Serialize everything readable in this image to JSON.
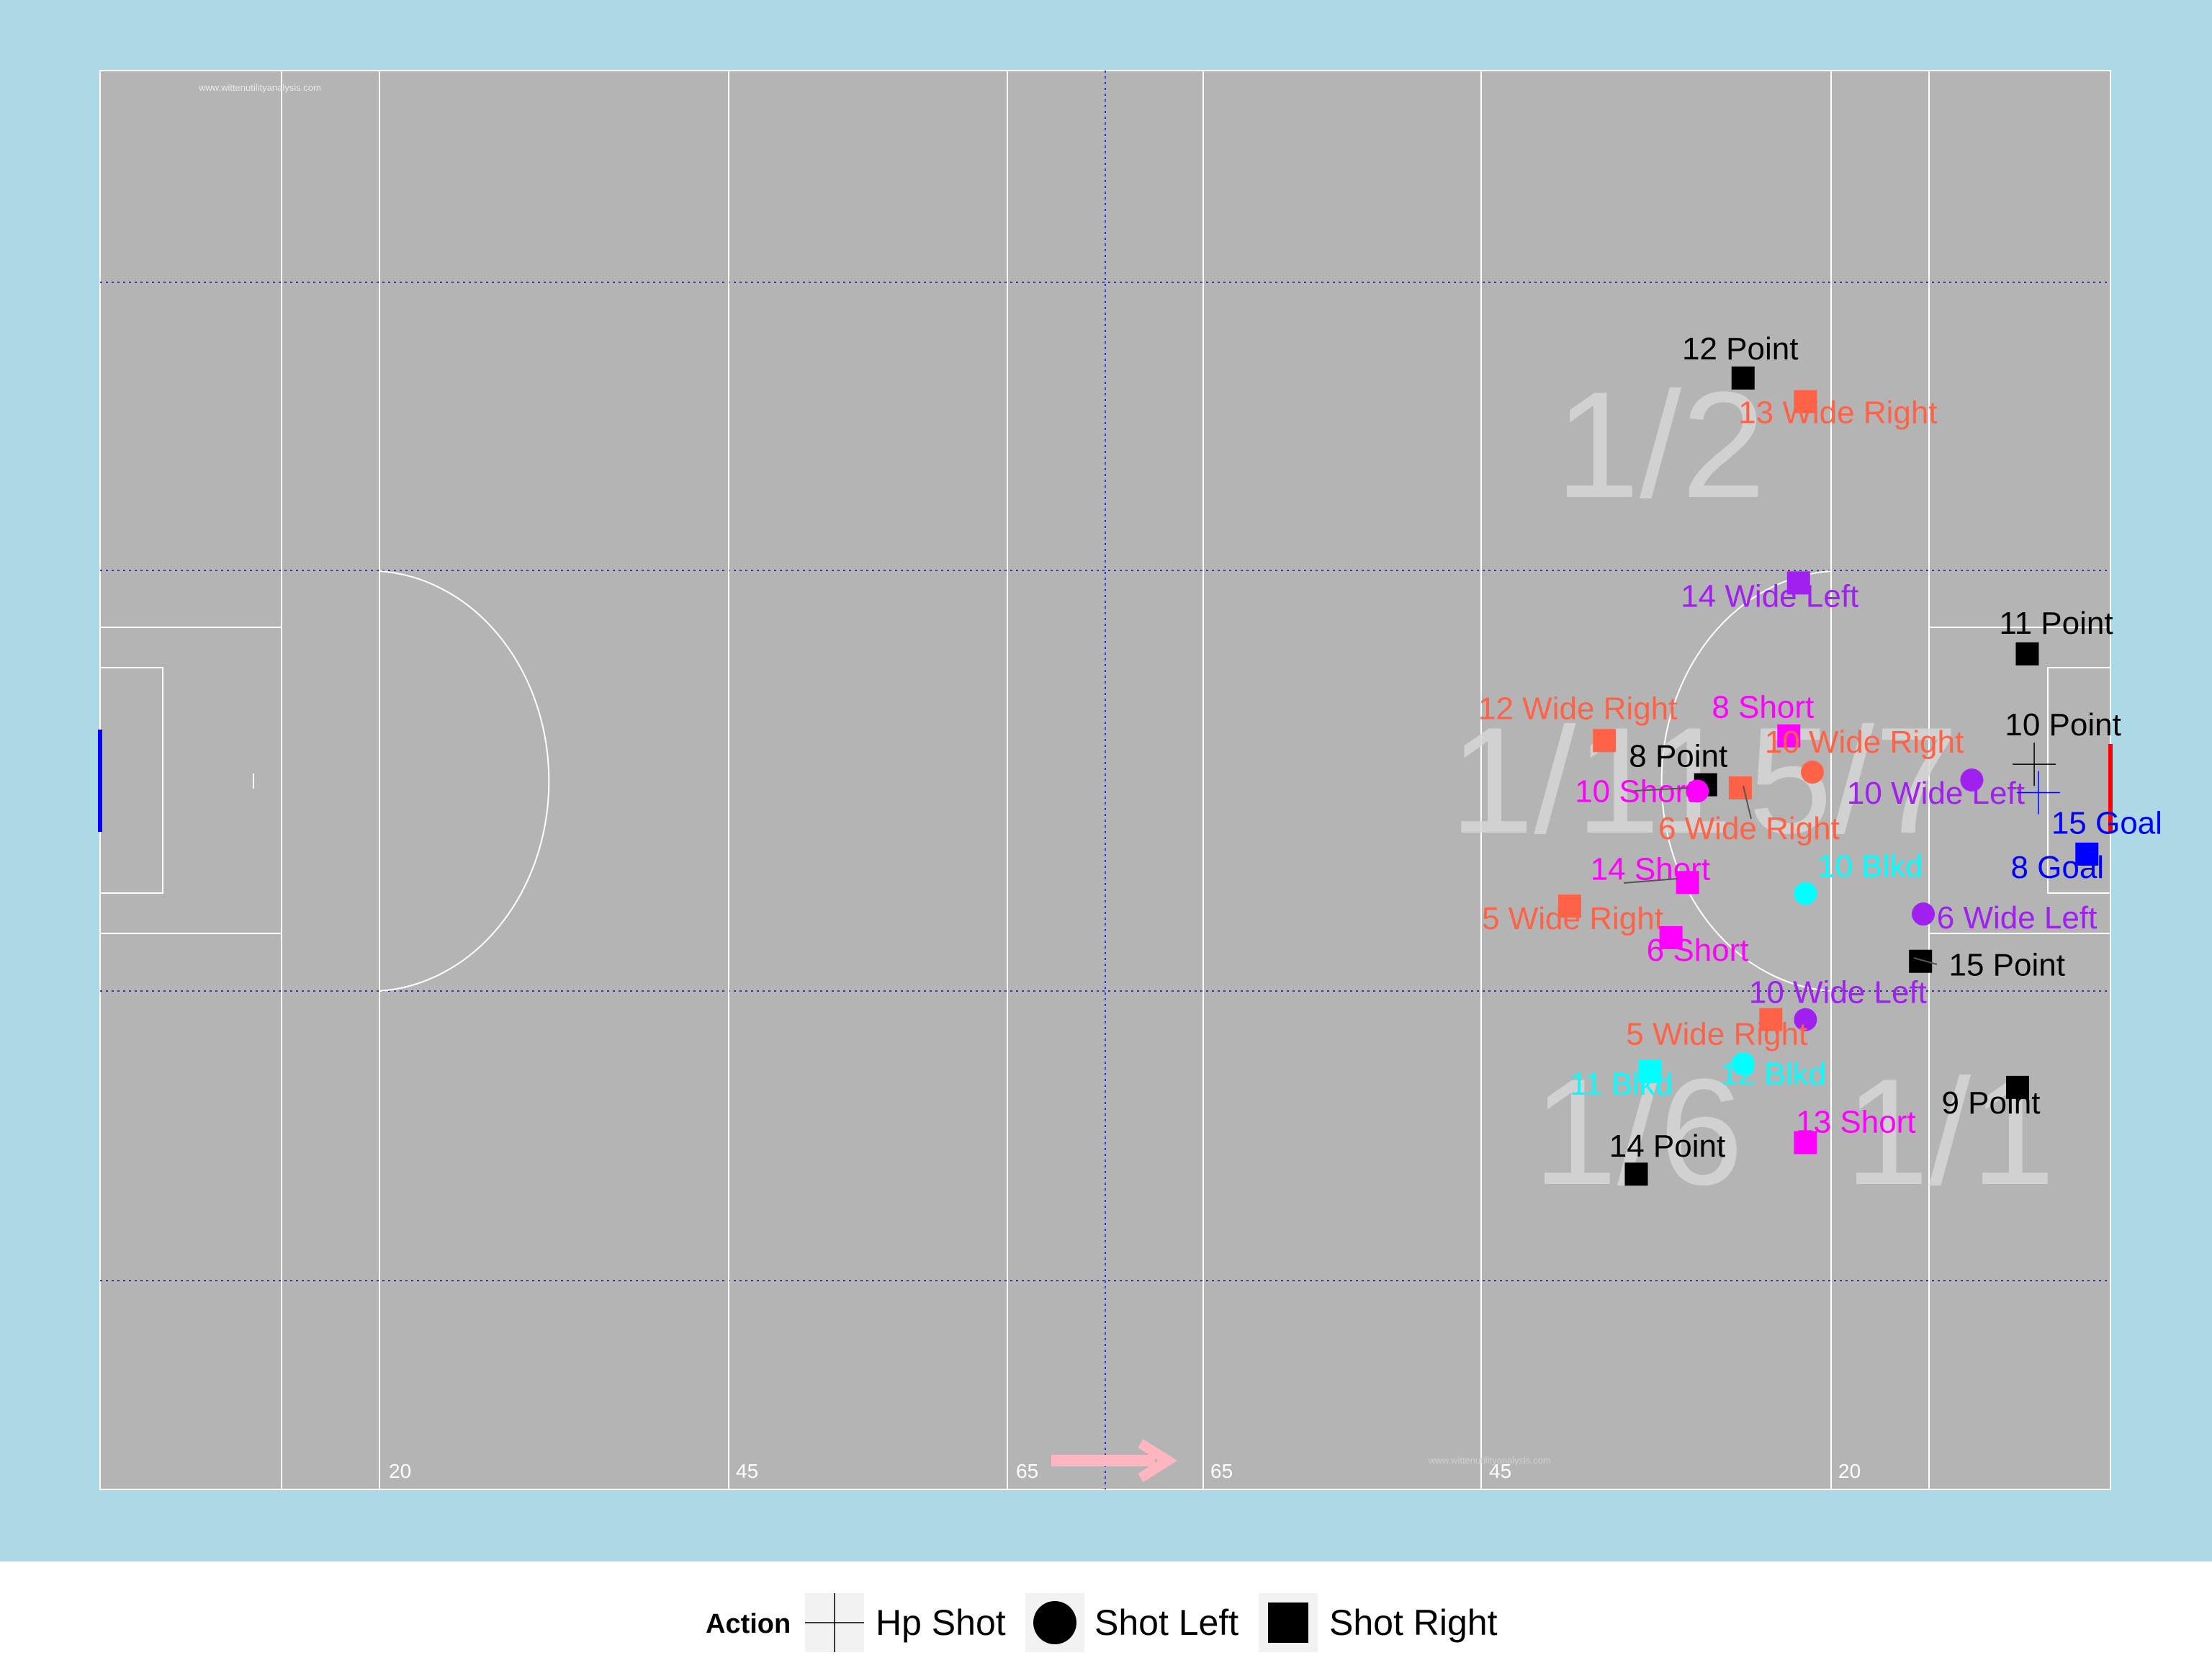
{
  "chart_data": {
    "type": "scatter",
    "title": "",
    "xlabel": "",
    "ylabel": "",
    "xlim": [
      0,
      145
    ],
    "ylim": [
      0,
      90
    ],
    "grid": false,
    "legend_position": "bottom",
    "watermark": "www.wittenutilityanalysis.com",
    "yard_lines": [
      {
        "label": "20",
        "x": 20
      },
      {
        "label": "45",
        "x": 45
      },
      {
        "label": "65",
        "x": 65
      },
      {
        "label": "65",
        "x": 79
      },
      {
        "label": "45",
        "x": 99
      },
      {
        "label": "20",
        "x": 124
      }
    ],
    "zone_labels": [
      "1/2",
      "1/11",
      "5/7",
      "1/6",
      "1/1"
    ],
    "legend": {
      "title": "Action",
      "items": [
        {
          "label": "Hp Shot",
          "shape": "plus"
        },
        {
          "label": "Shot Left",
          "shape": "circle"
        },
        {
          "label": "Shot Right",
          "shape": "square"
        }
      ]
    },
    "colors": {
      "background": "#add8e6",
      "pitch": "#b4b4b4",
      "Point": "#000000",
      "Goal": "#0000ff",
      "Wide Right": "#ff6347",
      "Wide Left": "#a020f0",
      "Short": "#ff00ff",
      "Blkd": "#00ffff",
      "direction_arrow": "#ffb6c1",
      "left_goal": "#0000ff",
      "right_goal": "#ff0000"
    },
    "points": [
      {
        "label": "12 Point",
        "result": "Point",
        "shape": "square",
        "x": 118.5,
        "y": 70.5
      },
      {
        "label": "13 Wide Right",
        "result": "Wide Right",
        "shape": "square",
        "x": 123,
        "y": 69
      },
      {
        "label": "14 Wide Left",
        "result": "Wide Left",
        "shape": "square",
        "x": 122.5,
        "y": 57.5
      },
      {
        "label": "11 Point",
        "result": "Point",
        "shape": "square",
        "x": 139,
        "y": 53
      },
      {
        "label": "12 Wide Right",
        "result": "Wide Right",
        "shape": "square",
        "x": 108.5,
        "y": 47.5
      },
      {
        "label": "8 Short",
        "result": "Short",
        "shape": "square",
        "x": 121.8,
        "y": 47.8
      },
      {
        "label": "10 Wide Right",
        "result": "Wide Right",
        "shape": "circle",
        "x": 123.5,
        "y": 45.5
      },
      {
        "label": "10 Point",
        "result": "Point",
        "shape": "plus",
        "x": 139.5,
        "y": 46
      },
      {
        "label": "8 Point",
        "result": "Point",
        "shape": "square",
        "x": 115.8,
        "y": 44.7
      },
      {
        "label": "10 Short",
        "result": "Short",
        "shape": "circle",
        "x": 115.2,
        "y": 44.3
      },
      {
        "label": "6 Wide Right",
        "result": "Wide Right",
        "shape": "square",
        "x": 118.3,
        "y": 44.5
      },
      {
        "label": "10 Wide Left",
        "result": "Wide Left",
        "shape": "circle",
        "x": 135,
        "y": 45
      },
      {
        "label": "15 Goal",
        "result": "Goal",
        "shape": "plus",
        "x": 139.8,
        "y": 44.2
      },
      {
        "label": "8 Goal",
        "result": "Goal",
        "shape": "square",
        "x": 143.3,
        "y": 40.3
      },
      {
        "label": "14 Short",
        "result": "Short",
        "shape": "square",
        "x": 114.5,
        "y": 38.5
      },
      {
        "label": "10 Blkd",
        "result": "Blkd",
        "shape": "circle",
        "x": 123,
        "y": 37.8
      },
      {
        "label": "5 Wide Right",
        "result": "Wide Right",
        "shape": "square",
        "x": 106,
        "y": 37
      },
      {
        "label": "6 Wide Left",
        "result": "Wide Left",
        "shape": "circle",
        "x": 131.5,
        "y": 36.5
      },
      {
        "label": "6 Short",
        "result": "Short",
        "shape": "square",
        "x": 113.3,
        "y": 35
      },
      {
        "label": "15 Point",
        "result": "Point",
        "shape": "square",
        "x": 131.3,
        "y": 33.5
      },
      {
        "label": "10 Wide Left",
        "result": "Wide Left",
        "shape": "circle",
        "x": 123,
        "y": 29.8
      },
      {
        "label": "5 Wide Right",
        "result": "Wide Right",
        "shape": "square",
        "x": 120.5,
        "y": 29.8
      },
      {
        "label": "11 Blkd",
        "result": "Blkd",
        "shape": "square",
        "x": 111.8,
        "y": 26.5
      },
      {
        "label": "12 Blkd",
        "result": "Blkd",
        "shape": "circle",
        "x": 118.5,
        "y": 27
      },
      {
        "label": "9 Point",
        "result": "Point",
        "shape": "square",
        "x": 138.3,
        "y": 25.5
      },
      {
        "label": "13 Short",
        "result": "Short",
        "shape": "square",
        "x": 123,
        "y": 22
      },
      {
        "label": "14 Point",
        "result": "Point",
        "shape": "square",
        "x": 110.8,
        "y": 20
      }
    ]
  }
}
